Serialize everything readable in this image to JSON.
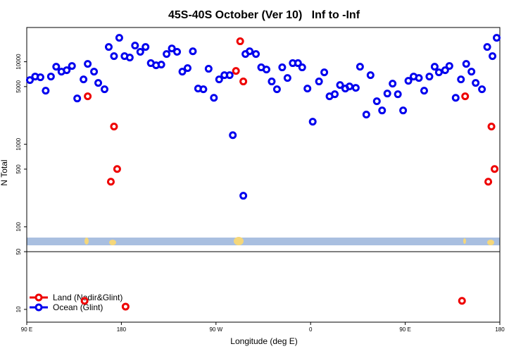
{
  "chart_data": {
    "type": "scatter",
    "title": "45S-40S October (Ver 10)   Inf to -Inf",
    "x_label": "Longitude (deg E)",
    "y_label": "N Total",
    "log_y": true,
    "legend": "bottom-left",
    "xlim": [
      90,
      540
    ],
    "xticks": [
      {
        "value": 90,
        "label": "90 E"
      },
      {
        "value": 180,
        "label": "180"
      },
      {
        "value": 270,
        "label": "90 W"
      },
      {
        "value": 360,
        "label": "0"
      },
      {
        "value": 450,
        "label": "90 E"
      },
      {
        "value": 540,
        "label": "180"
      }
    ],
    "ylim": [
      7,
      26000
    ],
    "yticks": [
      10,
      50,
      100,
      500,
      1000,
      5000,
      10000
    ],
    "series": [
      {
        "name": "Land (Nadir&Glint)",
        "color": "#ee0000",
        "x": [
          148,
          170,
          173,
          176,
          145,
          184,
          289,
          293,
          296,
          504,
          507,
          529,
          532,
          535
        ],
        "values": [
          3810,
          352,
          1640,
          502,
          12.7,
          10.8,
          7740,
          17700,
          5770,
          12.7,
          3810,
          352,
          1640,
          502
        ]
      },
      {
        "name": "Ocean (Glint)",
        "color": "#0000ee",
        "x": [
          93,
          98,
          103,
          108,
          113,
          118,
          123,
          128,
          133,
          138,
          144,
          148,
          154,
          158,
          164,
          168,
          173,
          178,
          183,
          188,
          193,
          198,
          203,
          208,
          213,
          218,
          223,
          228,
          233,
          238,
          243,
          248,
          253,
          258,
          263,
          268,
          273,
          278,
          283,
          286,
          296,
          298,
          302,
          308,
          313,
          318,
          323,
          328,
          333,
          338,
          343,
          348,
          352,
          357,
          362,
          368,
          373,
          378,
          383,
          388,
          393,
          397,
          403,
          407,
          413,
          417,
          423,
          428,
          433,
          438,
          443,
          448,
          453,
          458,
          463,
          468,
          473,
          478,
          482,
          488,
          492,
          498,
          503,
          508,
          513,
          517,
          523,
          528,
          533,
          537
        ],
        "values": [
          6000,
          6620,
          6490,
          4460,
          6620,
          8710,
          7590,
          7890,
          8890,
          3590,
          6110,
          9420,
          7590,
          5540,
          4640,
          15100,
          11700,
          19500,
          11700,
          11250,
          15700,
          13200,
          15100,
          9620,
          9060,
          9240,
          12400,
          14500,
          13200,
          7590,
          8380,
          13400,
          4730,
          4640,
          8220,
          3660,
          6110,
          6880,
          6880,
          1290,
          238,
          12400,
          13400,
          12400,
          8550,
          8050,
          5770,
          4640,
          8550,
          6360,
          9620,
          9620,
          8550,
          4730,
          1880,
          5770,
          7440,
          3810,
          4040,
          5220,
          4730,
          5020,
          4830,
          8710,
          2290,
          6880,
          3320,
          2570,
          4120,
          5430,
          4040,
          2570,
          5880,
          6620,
          6360,
          4460,
          6620,
          8710,
          7440,
          7890,
          8890,
          3660,
          6110,
          9420,
          7590,
          5540,
          4640,
          15100,
          11700,
          19500
        ]
      }
    ]
  }
}
